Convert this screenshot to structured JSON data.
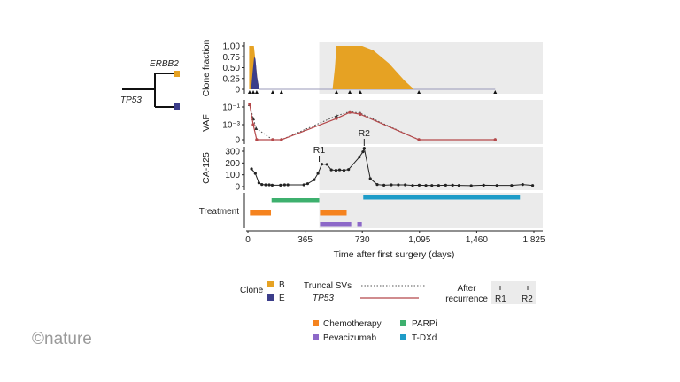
{
  "logo": "©nature",
  "tree": {
    "labels": [
      "ERBB2",
      "TP53"
    ],
    "clone_colors": [
      "#E6A223",
      "#3B3D8A"
    ]
  },
  "xaxis": {
    "label": "Time after first surgery (days)",
    "ticks": [
      0,
      365,
      730,
      1095,
      1460,
      1825
    ],
    "tick_labels": [
      "0",
      "365",
      "730",
      "1,095",
      "1,460",
      "1,825"
    ],
    "range": [
      0,
      1825
    ]
  },
  "recurrence": {
    "R1": {
      "label": "R1",
      "day": 455
    },
    "R2": {
      "label": "R2",
      "day": 742
    },
    "shaded_from_day": 455
  },
  "chart_data": [
    {
      "type": "area",
      "ylabel": "Clone fraction",
      "yticks": [
        0,
        0.25,
        0.5,
        0.75,
        1.0
      ],
      "ytick_labels": [
        "0",
        "0.25",
        "0.50",
        "0.75",
        "1.00"
      ],
      "ylim": [
        0,
        1
      ],
      "series": [
        {
          "name": "B",
          "color": "#E6A223",
          "x": [
            8,
            8,
            38,
            50,
            62,
            75,
            540,
            555,
            565,
            730,
            800,
            900,
            1000,
            1060
          ],
          "y": [
            0,
            1,
            1,
            0.6,
            0.2,
            0,
            0,
            0.5,
            1,
            1,
            0.9,
            0.6,
            0.2,
            0
          ]
        },
        {
          "name": "E",
          "color": "#3B3D8A",
          "x": [
            20,
            30,
            40,
            48,
            58,
            72
          ],
          "y": [
            0,
            0.4,
            0.75,
            0.7,
            0.3,
            0
          ]
        }
      ],
      "sample_days": [
        11,
        34,
        56,
        158,
        214,
        565,
        650,
        717,
        1091,
        1578
      ]
    },
    {
      "type": "line",
      "ylabel": "VAF",
      "yscale": "log with zero",
      "ytick_labels": [
        "0",
        "10⁻³",
        "10⁻¹"
      ],
      "yticks": [
        0,
        0.001,
        0.1
      ],
      "series": [
        {
          "name": "Truncal SVs",
          "style": "dotted",
          "color": "#444444",
          "x": [
            11,
            34,
            52,
            158,
            214,
            565,
            650,
            717,
            1091,
            1578
          ],
          "y": [
            0.2,
            0.005,
            0.0004,
            0,
            0,
            0.01,
            0.03,
            0.02,
            0,
            0
          ]
        },
        {
          "name": "TP53",
          "style": "solid",
          "color": "#B5484A",
          "x": [
            11,
            34,
            56,
            158,
            214,
            565,
            650,
            717,
            1091,
            1578
          ],
          "y": [
            0.2,
            0.001,
            0,
            0,
            0,
            0.005,
            0.025,
            0.015,
            0,
            0
          ]
        }
      ]
    },
    {
      "type": "line",
      "ylabel": "CA-125",
      "yticks": [
        0,
        100,
        200,
        300
      ],
      "ytick_labels": [
        "0",
        "100",
        "200",
        "300"
      ],
      "ylim": [
        0,
        330
      ],
      "series": [
        {
          "color": "#222222",
          "x": [
            23,
            47,
            70,
            89,
            113,
            136,
            155,
            208,
            234,
            255,
            357,
            381,
            423,
            447,
            472,
            504,
            532,
            562,
            585,
            613,
            642,
            711,
            734,
            742,
            781,
            825,
            868,
            915,
            960,
            1004,
            1051,
            1093,
            1136,
            1174,
            1217,
            1262,
            1306,
            1347,
            1425,
            1504,
            1589,
            1683,
            1753,
            1817
          ],
          "y": [
            150,
            112,
            32,
            18,
            15,
            15,
            12,
            12,
            15,
            15,
            15,
            25,
            58,
            112,
            190,
            188,
            142,
            138,
            142,
            138,
            145,
            250,
            295,
            325,
            68,
            18,
            12,
            15,
            15,
            15,
            10,
            12,
            10,
            10,
            10,
            12,
            12,
            10,
            8,
            12,
            10,
            10,
            18,
            10
          ]
        }
      ]
    },
    {
      "type": "gantt",
      "ylabel": "Treatment",
      "series": [
        {
          "name": "Chemotherapy",
          "color": "#F5831F",
          "intervals": [
            [
              13,
              147
            ],
            [
              460,
              630
            ]
          ]
        },
        {
          "name": "PARPi",
          "color": "#3DB06E",
          "intervals": [
            [
              151,
              455
            ]
          ]
        },
        {
          "name": "Bevacizumab",
          "color": "#8C68C8",
          "intervals": [
            [
              460,
              659
            ],
            [
              698,
              727
            ]
          ]
        },
        {
          "name": "T-DXd",
          "color": "#1E9CC8",
          "intervals": [
            [
              736,
              1736
            ]
          ]
        }
      ]
    }
  ],
  "legend": {
    "clone_title": "Clone",
    "clones": [
      {
        "label": "B",
        "color": "#E6A223"
      },
      {
        "label": "E",
        "color": "#3B3D8A"
      }
    ],
    "lines": [
      {
        "label": "Truncal SVs"
      },
      {
        "label": "TP53"
      }
    ],
    "after_recurrence": [
      "After",
      "recurrence"
    ],
    "recurrence_labels": [
      "R1",
      "R2"
    ],
    "treatments": [
      "Chemotherapy",
      "PARPi",
      "Bevacizumab",
      "T-DXd"
    ]
  }
}
